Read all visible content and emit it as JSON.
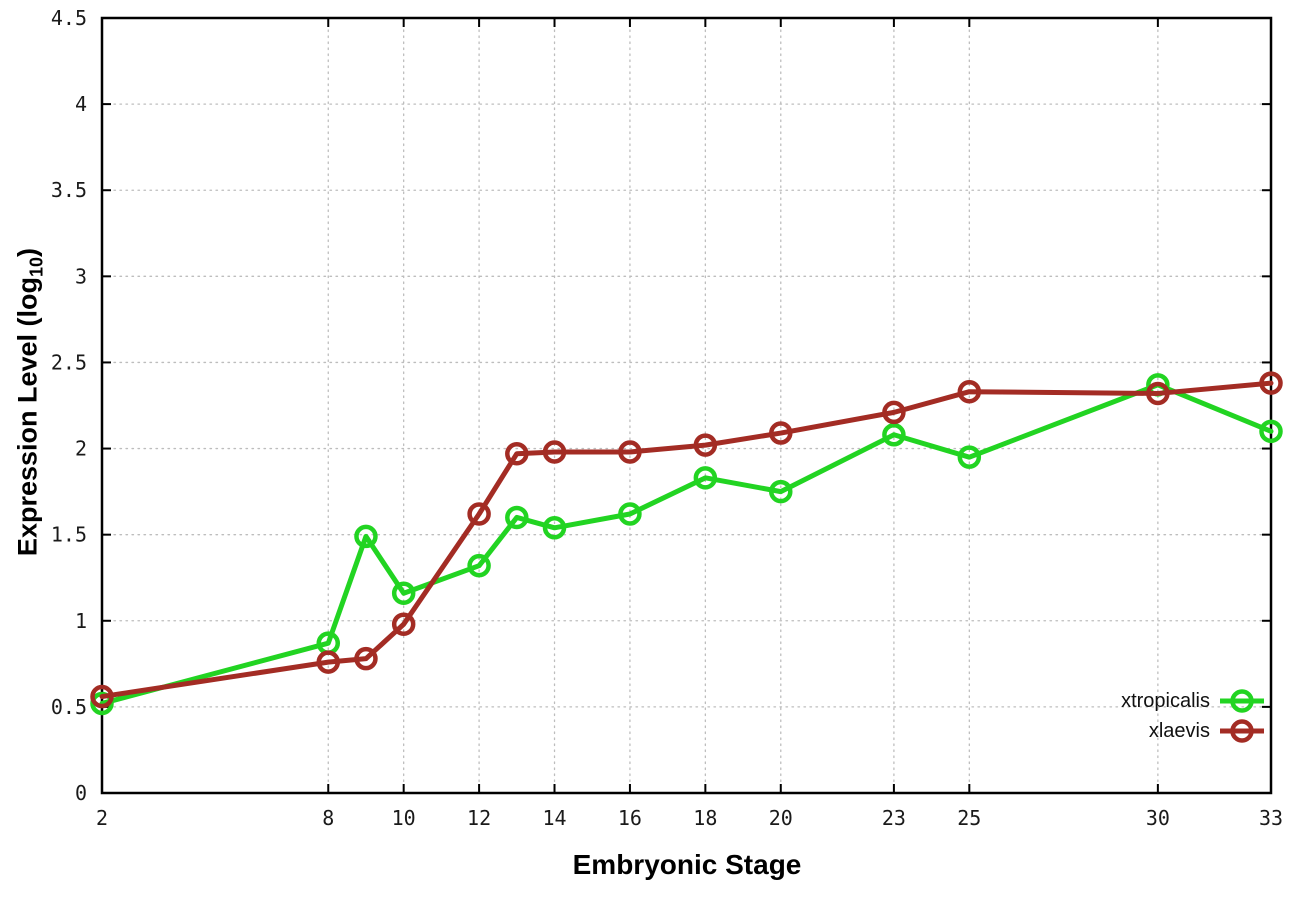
{
  "chart_data": {
    "type": "line",
    "title": "",
    "xlabel": "Embryonic Stage",
    "ylabel_main": "Expression Level (log",
    "ylabel_sub": "10",
    "ylabel_close": ")",
    "xlim": [
      2,
      33
    ],
    "ylim": [
      0,
      4.5
    ],
    "x_ticks": [
      2,
      8,
      10,
      12,
      14,
      16,
      18,
      20,
      23,
      25,
      30,
      33
    ],
    "y_ticks": [
      0,
      0.5,
      1,
      1.5,
      2,
      2.5,
      3,
      3.5,
      4,
      4.5
    ],
    "y_tick_labels": [
      "0",
      "0.5",
      "1",
      "1.5",
      "2",
      "2.5",
      "3",
      "3.5",
      "4",
      "4.5"
    ],
    "grid": true,
    "legend_position": "inside-bottom-right",
    "x": [
      2,
      8,
      9,
      10,
      12,
      13,
      14,
      16,
      18,
      20,
      23,
      25,
      30,
      33
    ],
    "series": [
      {
        "name": "xtropicalis",
        "color": "#22d422",
        "values": [
          0.52,
          0.87,
          1.49,
          1.16,
          1.32,
          1.6,
          1.54,
          1.62,
          1.83,
          1.75,
          2.08,
          1.95,
          2.37,
          2.1
        ]
      },
      {
        "name": "xlaevis",
        "color": "#a32c24",
        "values": [
          0.56,
          0.76,
          0.78,
          0.98,
          1.62,
          1.97,
          1.98,
          1.98,
          2.02,
          2.09,
          2.21,
          2.33,
          2.32,
          2.38
        ]
      }
    ],
    "style": {
      "marker": "open-circle",
      "line_width": 5,
      "marker_radius": 9.5,
      "background": "#ffffff",
      "grid_color": "#bdbdbd",
      "axis_color": "#000000",
      "tick_text_color": "#1a1a1a"
    }
  }
}
